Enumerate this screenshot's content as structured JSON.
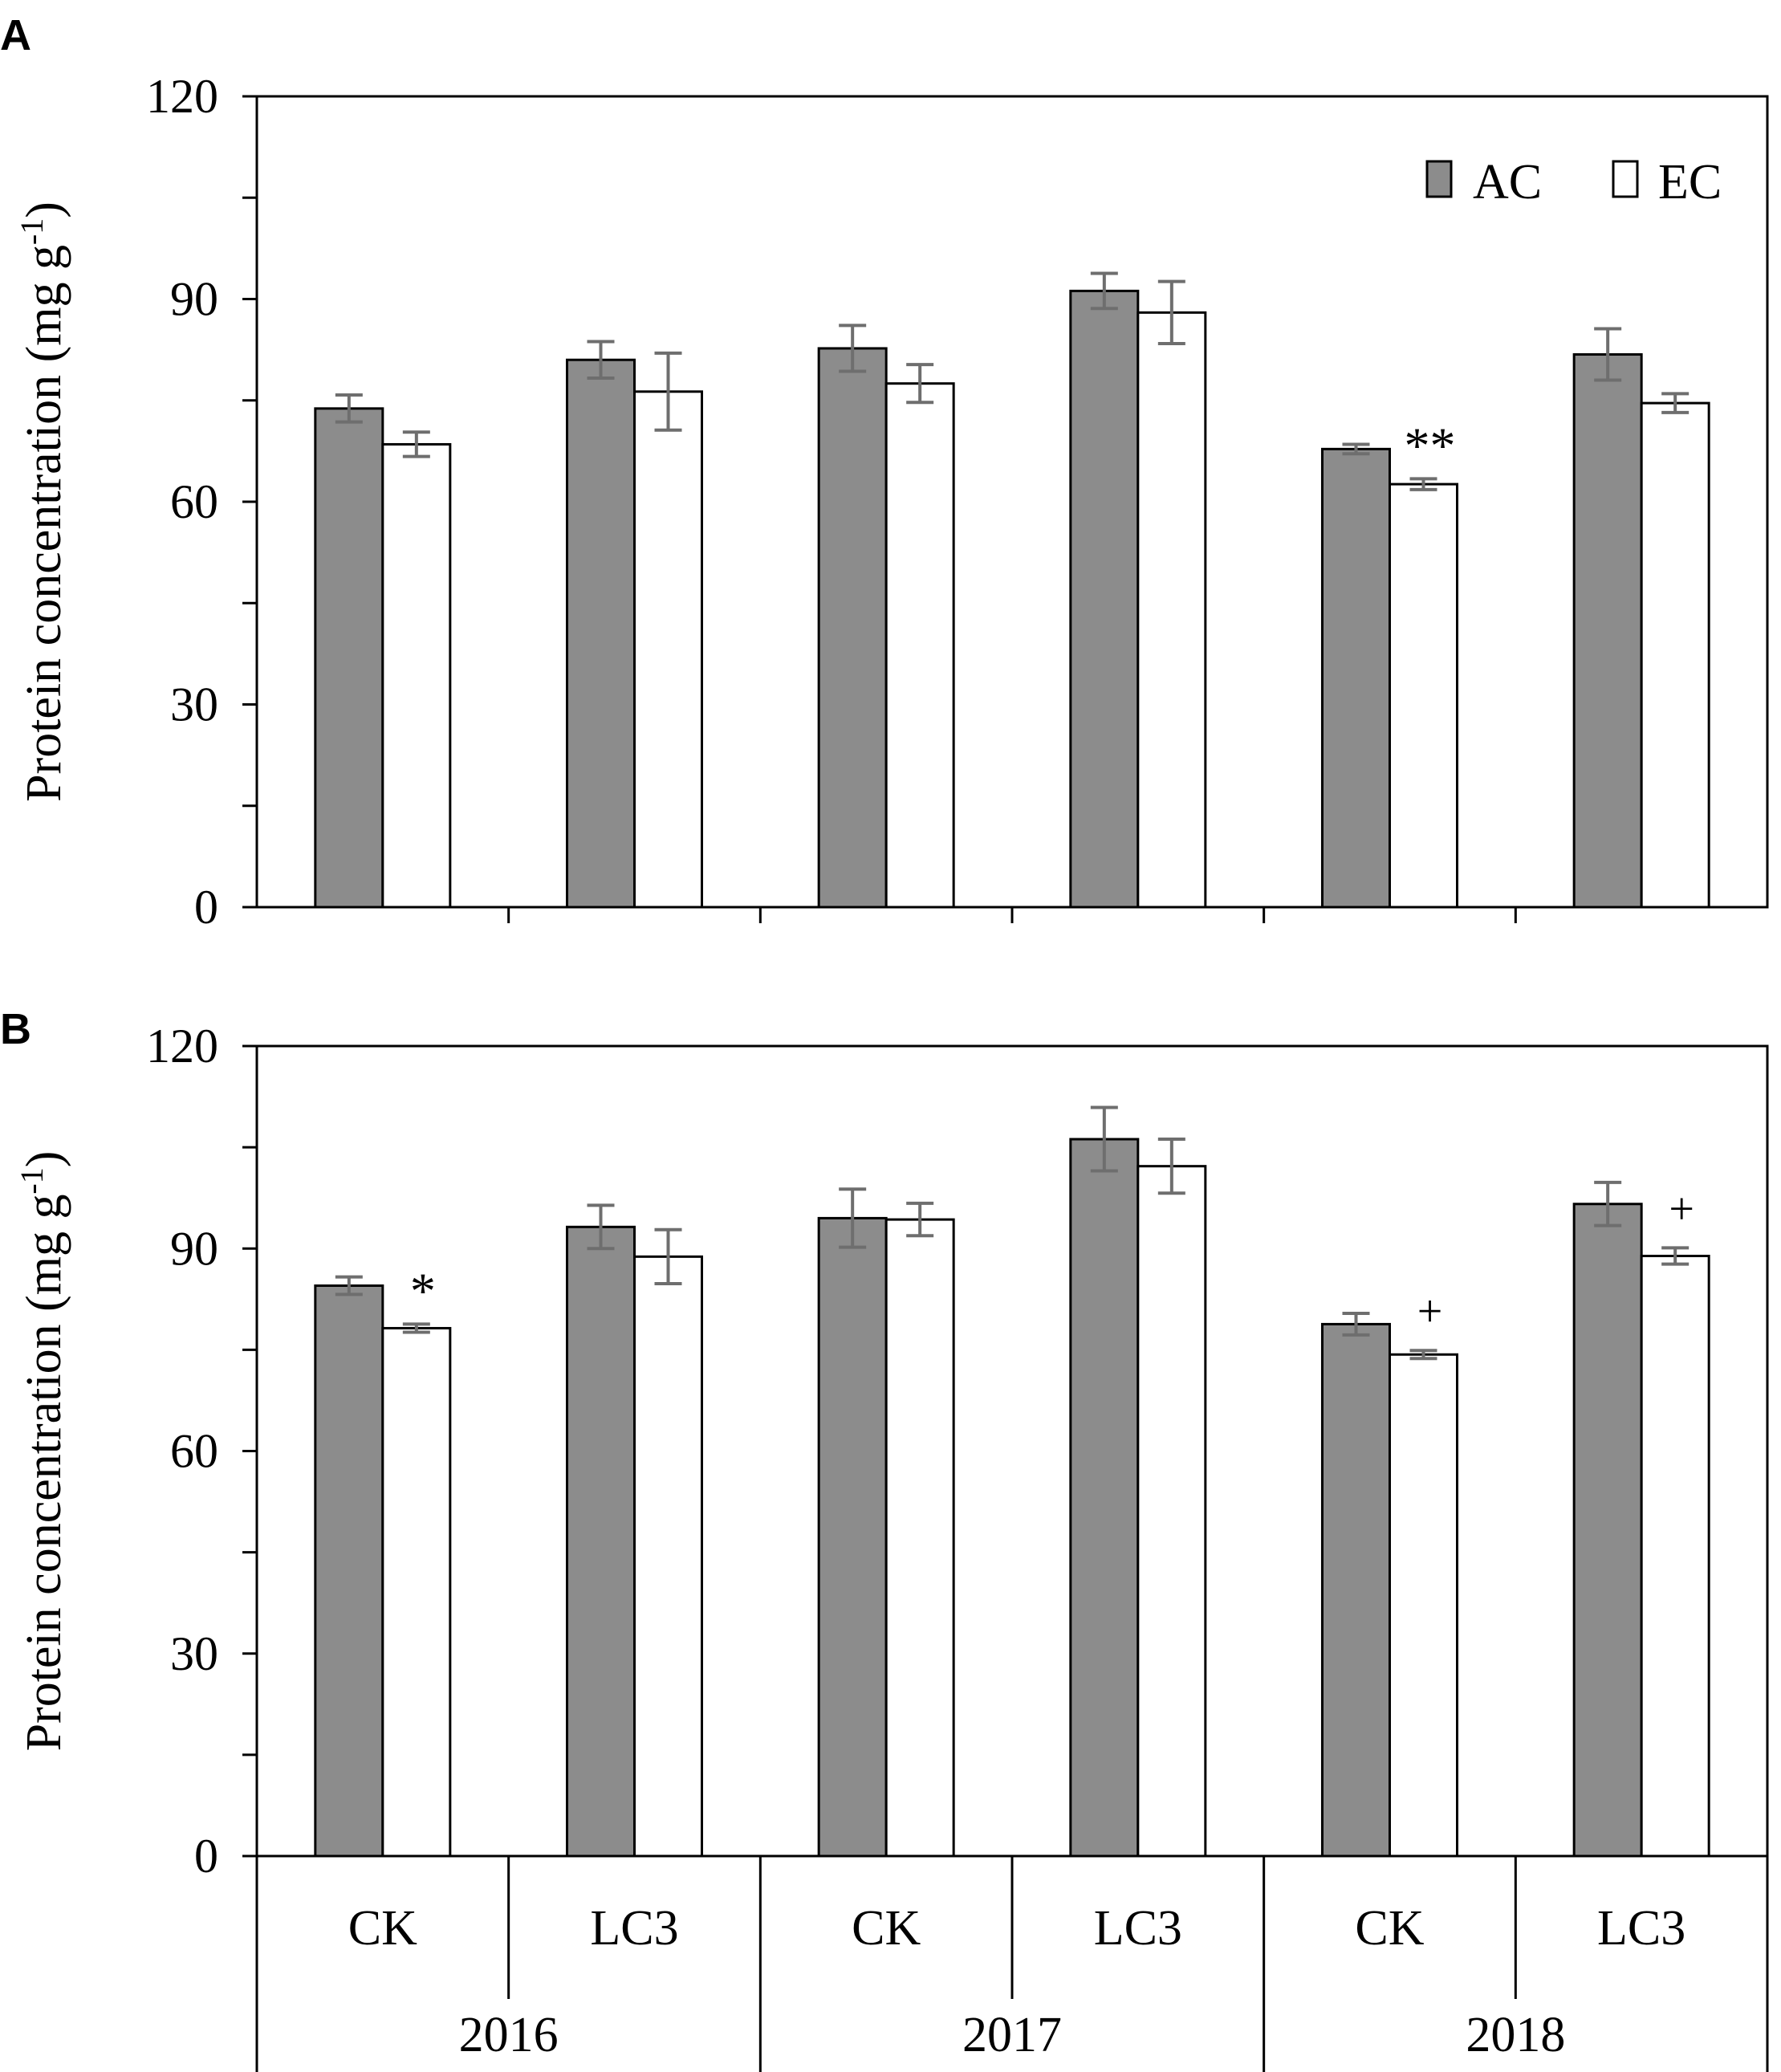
{
  "colors": {
    "ac_fill": "#8c8c8c",
    "ec_fill": "#ffffff",
    "axis": "#000000",
    "error_bar": "#6e6e6e"
  },
  "legend": {
    "ac": "AC",
    "ec": "EC"
  },
  "x_axis": {
    "treatments": [
      "CK",
      "LC3",
      "CK",
      "LC3",
      "CK",
      "LC3"
    ],
    "years": [
      "2016",
      "2017",
      "2018"
    ]
  },
  "chart_data": [
    {
      "panel": "A",
      "type": "bar",
      "ylabel": "Protein concentration (mg g",
      "ylabel_sup": "-1",
      "ylabel_close": ")",
      "ylim": [
        0,
        120
      ],
      "yticks": [
        "0",
        "30",
        "60",
        "90",
        "120"
      ],
      "categories": [
        "2016 CK",
        "2016 LC3",
        "2017 CK",
        "2017 LC3",
        "2018 CK",
        "2018 LC3"
      ],
      "series": [
        {
          "name": "AC",
          "values": [
            73.8,
            81.0,
            82.7,
            91.2,
            67.8,
            81.8
          ],
          "errors": [
            2.0,
            2.7,
            3.4,
            2.6,
            0.7,
            3.8
          ]
        },
        {
          "name": "EC",
          "values": [
            68.5,
            76.3,
            77.5,
            88.0,
            62.6,
            74.6
          ],
          "errors": [
            1.8,
            5.7,
            2.8,
            4.6,
            0.8,
            1.4
          ]
        }
      ],
      "annotations": [
        {
          "category": 4,
          "series": "EC",
          "text": "**"
        }
      ]
    },
    {
      "panel": "B",
      "type": "bar",
      "ylabel": "Protein concentration (mg g",
      "ylabel_sup": "-1",
      "ylabel_close": ")",
      "ylim": [
        0,
        120
      ],
      "yticks": [
        "0",
        "30",
        "60",
        "90",
        "120"
      ],
      "categories": [
        "2016 CK",
        "2016 LC3",
        "2017 CK",
        "2017 LC3",
        "2018 CK",
        "2018 LC3"
      ],
      "series": [
        {
          "name": "AC",
          "values": [
            84.5,
            93.2,
            94.5,
            106.2,
            78.8,
            96.6
          ],
          "errors": [
            1.3,
            3.2,
            4.3,
            4.7,
            1.6,
            3.2
          ]
        },
        {
          "name": "EC",
          "values": [
            78.2,
            88.8,
            94.3,
            102.2,
            74.3,
            88.9
          ],
          "errors": [
            0.6,
            4.0,
            2.4,
            4.0,
            0.6,
            1.2
          ]
        }
      ],
      "annotations": [
        {
          "category": 0,
          "series": "EC",
          "text": "*"
        },
        {
          "category": 4,
          "series": "EC",
          "text": "+"
        },
        {
          "category": 5,
          "series": "EC",
          "text": "+"
        }
      ]
    }
  ]
}
